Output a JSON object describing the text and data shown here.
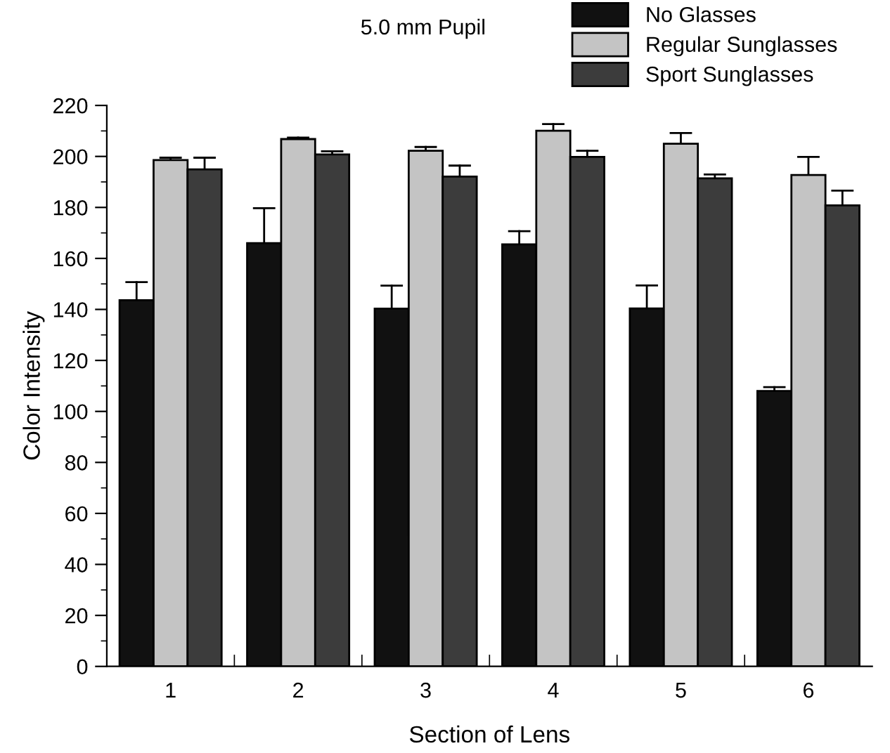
{
  "chart_data": {
    "type": "bar",
    "xlabel": "Section of Lens",
    "ylabel": "Color Intensity",
    "legend_title": "5.0 mm Pupil",
    "legend": "top right",
    "categories": [
      "1",
      "2",
      "3",
      "4",
      "5",
      "6"
    ],
    "series": [
      {
        "name": "No Glasses",
        "color": "#111111",
        "values": [
          143.6,
          166,
          140.3,
          165.5,
          140.4,
          108
        ],
        "errors": [
          [
            143.6,
            150.7
          ],
          [
            166,
            179.7
          ],
          [
            140.3,
            149.3
          ],
          [
            165.5,
            170.7
          ],
          [
            140.4,
            149.4
          ],
          [
            108,
            109.5
          ]
        ]
      },
      {
        "name": "Regular Sunglasses",
        "color": "#c4c4c4",
        "values": [
          198.6,
          206.8,
          202.2,
          210.1,
          205,
          192.7
        ],
        "errors": [
          [
            198.6,
            199.5
          ],
          [
            206.8,
            207.4
          ],
          [
            202.2,
            203.7
          ],
          [
            210.1,
            212.7
          ],
          [
            205,
            209.2
          ],
          [
            192.7,
            199.8
          ]
        ]
      },
      {
        "name": "Sport Sunglasses",
        "color": "#3c3c3c",
        "values": [
          194.9,
          200.8,
          192.1,
          199.8,
          191.4,
          180.8
        ],
        "errors": [
          [
            194.9,
            199.5
          ],
          [
            200.8,
            202
          ],
          [
            192.1,
            196.4
          ],
          [
            199.8,
            202.2
          ],
          [
            191.4,
            192.9
          ],
          [
            180.8,
            186.6
          ]
        ]
      }
    ],
    "ylim": [
      0,
      220
    ],
    "yticks": [
      0,
      20,
      40,
      60,
      80,
      100,
      120,
      140,
      160,
      180,
      200,
      220
    ],
    "grid": false
  }
}
